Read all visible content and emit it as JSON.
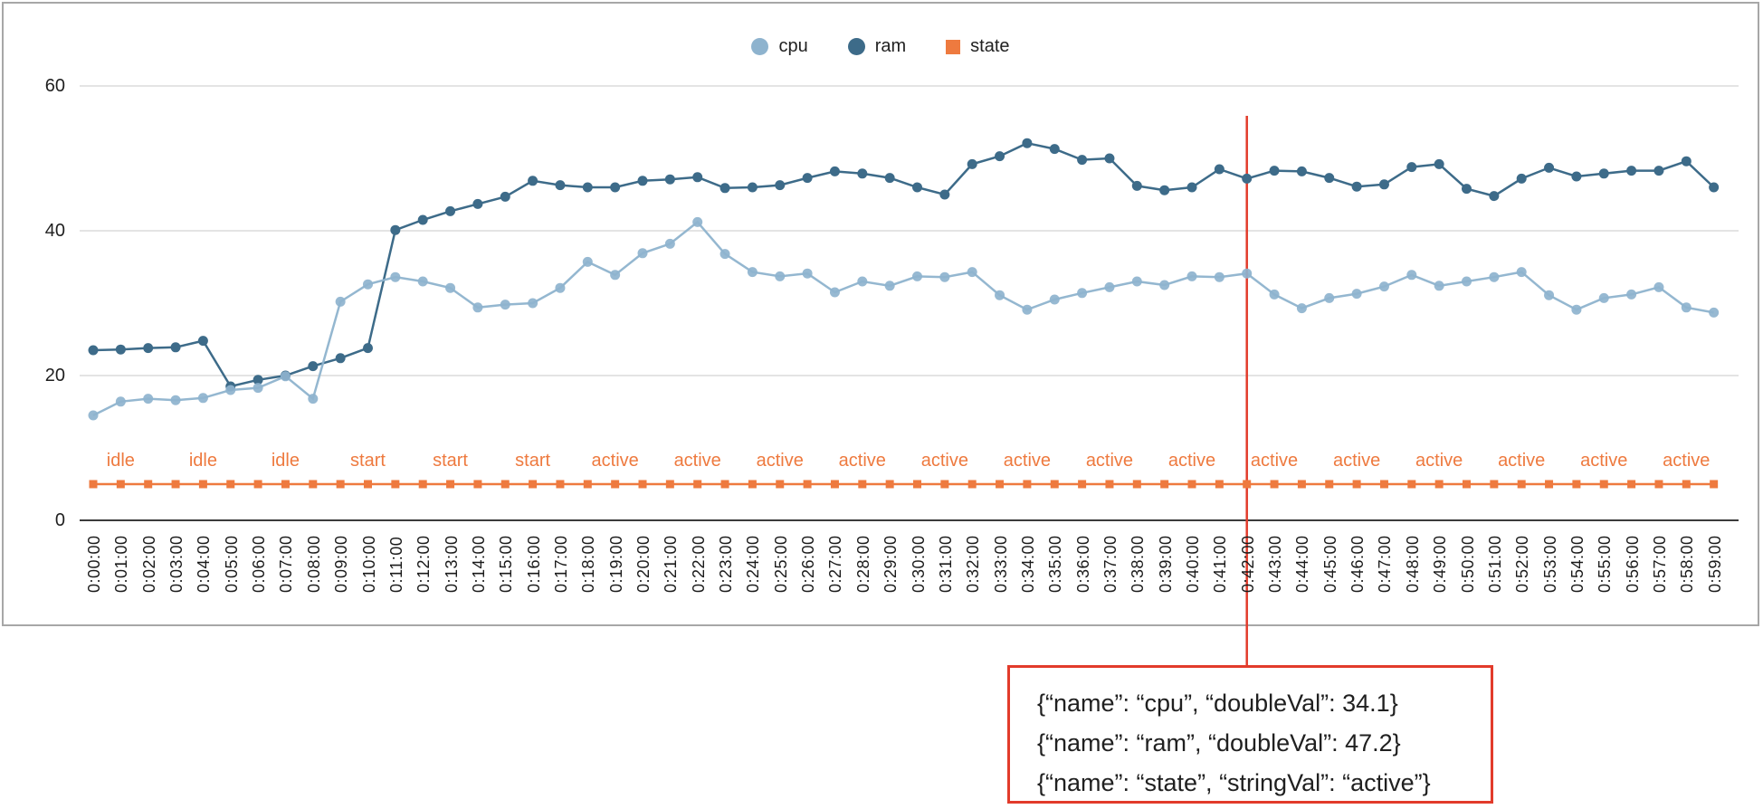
{
  "legend": {
    "items": [
      {
        "label": "cpu",
        "color": "#8EB3CE",
        "shape": "circle"
      },
      {
        "label": "ram",
        "color": "#3D6B89",
        "shape": "circle"
      },
      {
        "label": "state",
        "color": "#EE7A3F",
        "shape": "square"
      }
    ]
  },
  "chart_data": {
    "type": "line",
    "title": "",
    "xlabel": "",
    "ylabel": "",
    "ylim": [
      0,
      60
    ],
    "yticks": [
      0,
      20,
      40,
      60
    ],
    "grid": "horizontal-only",
    "legend_position": "top-center",
    "x": [
      "0:00:00",
      "0:01:00",
      "0:02:00",
      "0:03:00",
      "0:04:00",
      "0:05:00",
      "0:06:00",
      "0:07:00",
      "0:08:00",
      "0:09:00",
      "0:10:00",
      "0:11:00",
      "0:12:00",
      "0:13:00",
      "0:14:00",
      "0:15:00",
      "0:16:00",
      "0:17:00",
      "0:18:00",
      "0:19:00",
      "0:20:00",
      "0:21:00",
      "0:22:00",
      "0:23:00",
      "0:24:00",
      "0:25:00",
      "0:26:00",
      "0:27:00",
      "0:28:00",
      "0:29:00",
      "0:30:00",
      "0:31:00",
      "0:32:00",
      "0:33:00",
      "0:34:00",
      "0:35:00",
      "0:36:00",
      "0:37:00",
      "0:38:00",
      "0:39:00",
      "0:40:00",
      "0:41:00",
      "0:42:00",
      "0:43:00",
      "0:44:00",
      "0:45:00",
      "0:46:00",
      "0:47:00",
      "0:48:00",
      "0:49:00",
      "0:50:00",
      "0:51:00",
      "0:52:00",
      "0:53:00",
      "0:54:00",
      "0:55:00",
      "0:56:00",
      "0:57:00",
      "0:58:00",
      "0:59:00"
    ],
    "series": [
      {
        "name": "cpu",
        "color": "#8EB3CE",
        "values": [
          14.5,
          16.4,
          16.8,
          16.6,
          16.9,
          18.0,
          18.3,
          19.9,
          16.8,
          30.2,
          32.6,
          33.6,
          33.0,
          32.1,
          29.4,
          29.8,
          30.0,
          32.1,
          35.7,
          33.9,
          36.9,
          38.2,
          41.2,
          36.8,
          34.3,
          33.7,
          34.1,
          31.5,
          33.0,
          32.4,
          33.7,
          33.6,
          34.3,
          31.1,
          29.1,
          30.5,
          31.4,
          32.2,
          33.0,
          32.5,
          33.7,
          33.6,
          34.1,
          31.2,
          29.3,
          30.7,
          31.3,
          32.3,
          33.9,
          32.4,
          33.0,
          33.6,
          34.3,
          31.1,
          29.1,
          30.7,
          31.2,
          32.2,
          29.4,
          28.7
        ]
      },
      {
        "name": "ram",
        "color": "#3D6B89",
        "values": [
          23.5,
          23.6,
          23.8,
          23.9,
          24.8,
          18.5,
          19.4,
          20.0,
          21.3,
          22.4,
          23.8,
          40.1,
          41.5,
          42.7,
          43.7,
          44.7,
          46.9,
          46.3,
          46.0,
          46.0,
          46.9,
          47.1,
          47.4,
          45.9,
          46.0,
          46.3,
          47.3,
          48.2,
          47.9,
          47.3,
          46.0,
          45.0,
          49.2,
          50.3,
          52.1,
          51.3,
          49.8,
          50.0,
          46.2,
          45.6,
          46.0,
          48.5,
          47.2,
          48.3,
          48.2,
          47.3,
          46.1,
          46.4,
          48.8,
          49.2,
          45.8,
          44.8,
          47.2,
          48.7,
          47.5,
          47.9,
          48.3,
          48.3,
          49.6,
          46.0
        ]
      }
    ],
    "state_series": {
      "name": "state",
      "color": "#EE7A3F",
      "plotted_at_value": 5,
      "label_first_index": 1,
      "label_every_nth": 3,
      "values": [
        "idle",
        "idle",
        "idle",
        "idle",
        "idle",
        "idle",
        "idle",
        "idle",
        "idle",
        "start",
        "start",
        "start",
        "start",
        "start",
        "start",
        "start",
        "start",
        "start",
        "active",
        "active",
        "active",
        "active",
        "active",
        "active",
        "active",
        "active",
        "active",
        "active",
        "active",
        "active",
        "active",
        "active",
        "active",
        "active",
        "active",
        "active",
        "active",
        "active",
        "active",
        "active",
        "active",
        "active",
        "active",
        "active",
        "active",
        "active",
        "active",
        "active",
        "active",
        "active",
        "active",
        "active",
        "active",
        "active",
        "active",
        "active",
        "active",
        "active",
        "active",
        "active"
      ]
    }
  },
  "crosshair": {
    "index": 42,
    "color": "#E23B2B"
  },
  "tooltip": {
    "border_color": "#E23B2B",
    "lines": [
      "{“name”: “cpu”, “doubleVal”: 34.1}",
      "{“name”: “ram”, “doubleVal”: 47.2}",
      "{“name”: “state”, “stringVal”: “active”}"
    ]
  }
}
